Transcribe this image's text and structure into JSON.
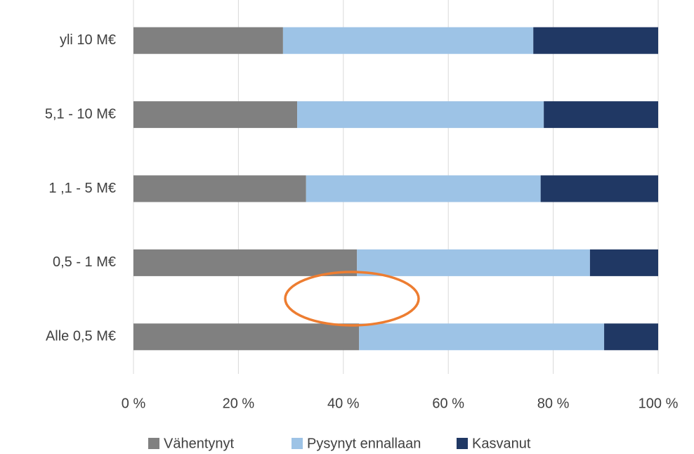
{
  "chart_data": {
    "type": "stacked_barh",
    "categories": [
      "yli 10 M€",
      "5,1 - 10 M€",
      "1 ,1 - 5 M€",
      "0,5 - 1 M€",
      "Alle 0,5 M€"
    ],
    "series": [
      {
        "name": "Vähentynyt",
        "color": "#808080",
        "values": [
          28.5,
          31.2,
          32.9,
          42.6,
          43.0
        ]
      },
      {
        "name": "Pysynyt ennallaan",
        "color": "#9dc3e6",
        "values": [
          47.7,
          47.0,
          44.7,
          44.4,
          46.7
        ]
      },
      {
        "name": "Kasvanut",
        "color": "#203864",
        "values": [
          23.8,
          21.8,
          22.4,
          13.0,
          10.3
        ]
      }
    ],
    "xlim": [
      0,
      100
    ],
    "xticks": [
      {
        "value": 0,
        "label": "0 %"
      },
      {
        "value": 20,
        "label": "20 %"
      },
      {
        "value": 40,
        "label": "40 %"
      },
      {
        "value": 60,
        "label": "60 %"
      },
      {
        "value": 80,
        "label": "80 %"
      },
      {
        "value": 100,
        "label": "100 %"
      }
    ],
    "grid": true,
    "legend": "bottom"
  }
}
